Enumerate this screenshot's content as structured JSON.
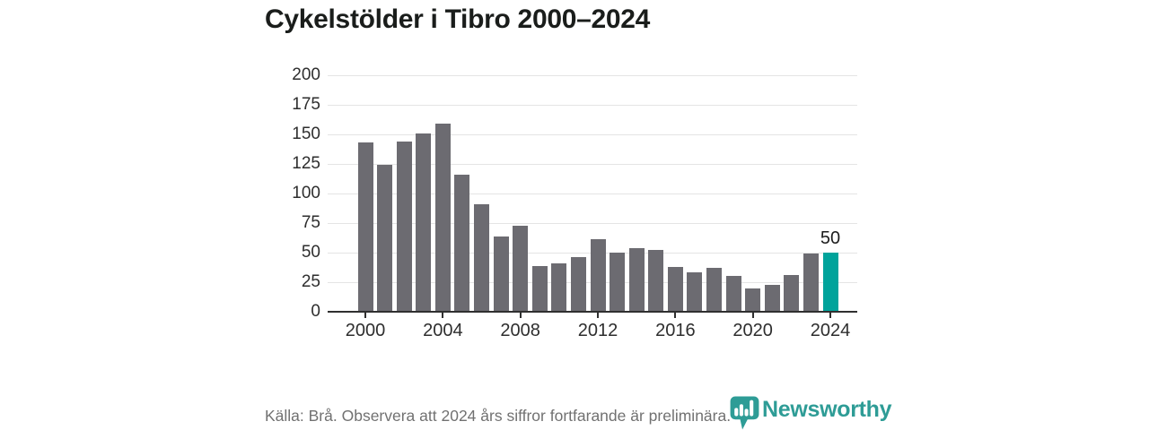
{
  "title": "Cykelstölder i Tibro 2000–2024",
  "source_note": "Källa: Brå. Observera att 2024 års siffror fortfarande är preliminära.",
  "logo": {
    "name": "Newsworthy",
    "icon": "newsworthy-pin-barchart-icon",
    "color": "#2e9c96"
  },
  "colors": {
    "bar": "#6c6b71",
    "highlight": "#00a39b",
    "grid": "#e4e4e4",
    "axis": "#2f2f2f",
    "title": "#1a1d1b",
    "source": "#717171"
  },
  "chart_data": {
    "type": "bar",
    "title": "Cykelstölder i Tibro 2000–2024",
    "x": [
      2000,
      2001,
      2002,
      2003,
      2004,
      2005,
      2006,
      2007,
      2008,
      2009,
      2010,
      2011,
      2012,
      2013,
      2014,
      2015,
      2016,
      2017,
      2018,
      2019,
      2020,
      2021,
      2022,
      2023,
      2024
    ],
    "values": [
      143,
      124,
      144,
      151,
      159,
      116,
      91,
      64,
      73,
      39,
      41,
      46,
      61,
      50,
      54,
      52,
      38,
      33,
      37,
      30,
      20,
      23,
      31,
      49,
      50
    ],
    "highlight_index": 24,
    "bar_label": {
      "index": 24,
      "text": "50"
    },
    "y_ticks": [
      0,
      25,
      50,
      75,
      100,
      125,
      150,
      175,
      200
    ],
    "x_tick_labels": [
      "2000",
      "2004",
      "2008",
      "2012",
      "2016",
      "2020",
      "2024"
    ],
    "x_tick_years": [
      2000,
      2004,
      2008,
      2012,
      2016,
      2020,
      2024
    ],
    "ylim": [
      0,
      200
    ],
    "xlabel": "",
    "ylabel": "",
    "grid": true,
    "legend": "none"
  }
}
